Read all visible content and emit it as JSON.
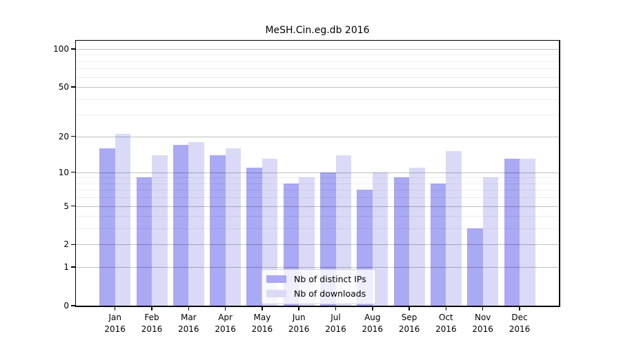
{
  "title": "MeSH.Cin.eg.db 2016",
  "chart_data": {
    "type": "bar",
    "title": "MeSH.Cin.eg.db 2016",
    "categories": [
      "Jan 2016",
      "Feb 2016",
      "Mar 2016",
      "Apr 2016",
      "May 2016",
      "Jun 2016",
      "Jul 2016",
      "Aug 2016",
      "Sep 2016",
      "Oct 2016",
      "Nov 2016",
      "Dec 2016"
    ],
    "series": [
      {
        "name": "Nb of distinct IPs",
        "color": "#a9a9f4",
        "values": [
          16,
          9,
          17,
          14,
          11,
          8,
          10,
          7,
          9,
          8,
          3,
          13
        ]
      },
      {
        "name": "Nb of downloads",
        "color": "#dadaf8",
        "values": [
          21,
          14,
          18,
          16,
          13,
          9,
          14,
          10,
          11,
          15,
          9,
          13
        ]
      }
    ],
    "xlabel": "",
    "ylabel": "",
    "yscale": "log1p",
    "ylim": [
      0,
      116
    ],
    "yticks": [
      0,
      1,
      2,
      5,
      10,
      20,
      50,
      100
    ],
    "minor_gridlines": [
      3,
      4,
      6,
      7,
      8,
      9,
      30,
      40,
      60,
      70,
      80,
      90
    ],
    "grid": true,
    "legend_position": "lower center"
  }
}
